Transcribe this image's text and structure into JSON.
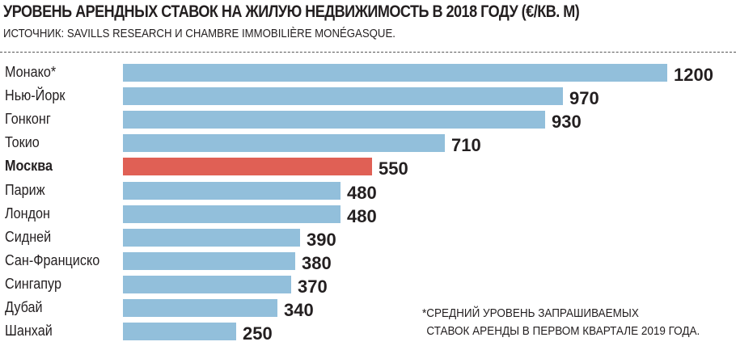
{
  "chart_data": {
    "type": "bar",
    "orientation": "horizontal",
    "title": "УРОВЕНЬ АРЕНДНЫХ СТАВОК НА ЖИЛУЮ НЕДВИЖИМОСТЬ В 2018 ГОДУ (€/КВ. М)",
    "subtitle": "ИСТОЧНИК: SAVILLS RESEARCH И CHAMBRE IMMOBILIÈRE MONÉGASQUE.",
    "categories": [
      "Монако*",
      "Нью-Йорк",
      "Гонконг",
      "Токио",
      "Москва",
      "Париж",
      "Лондон",
      "Сидней",
      "Сан-Франциско",
      "Сингапур",
      "Дубай",
      "Шанхай"
    ],
    "values": [
      1200,
      970,
      930,
      710,
      550,
      480,
      480,
      390,
      380,
      370,
      340,
      250
    ],
    "value_labels": [
      "1200",
      "970",
      "930",
      "710",
      "550",
      "480",
      "480",
      "390",
      "380",
      "370",
      "340",
      "250"
    ],
    "highlight": "Москва",
    "colors": {
      "default": "#92bfdb",
      "highlight": "#e06055"
    },
    "xlabel": "",
    "ylabel": "",
    "grid": false,
    "legend": null,
    "annotation": [
      "*СРЕДНИЙ УРОВЕНЬ ЗАПРАШИВАЕМЫХ",
      "СТАВОК АРЕНДЫ В ПЕРВОМ КВАРТАЛЕ 2019 ГОДА."
    ]
  }
}
